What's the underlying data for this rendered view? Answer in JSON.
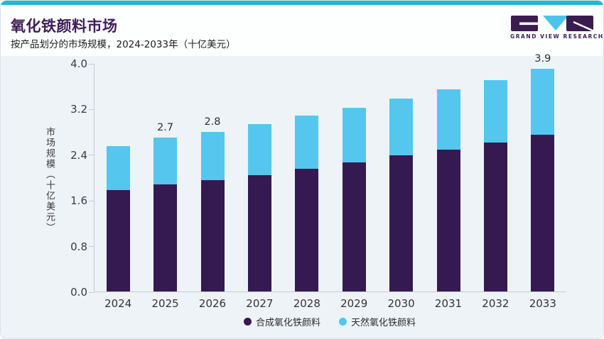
{
  "header": {
    "title": "氧化铁颜料市场",
    "subtitle": "按产品划分的市场规模，2024-2033年（十亿美元）",
    "logo_text": "GRAND VIEW RESEARCH"
  },
  "colors": {
    "accent_bar": "#28b4d8",
    "title_purple": "#3e1e58",
    "synthetic_purple": "#351a52",
    "natural_blue": "#55c6ee",
    "chart_background": "#eef3f8",
    "axis_line": "#c2cad3",
    "logo_purple": "#3a1c4e",
    "logo_cyan": "#4ec3ea"
  },
  "chart_data": {
    "type": "bar",
    "stacked": true,
    "title": "氧化铁颜料市场",
    "subtitle": "按产品划分的市场规模，2024-2033年（十亿美元）",
    "categories": [
      "2024",
      "2025",
      "2026",
      "2027",
      "2028",
      "2029",
      "2030",
      "2031",
      "2032",
      "2033"
    ],
    "series": [
      {
        "name": "合成氧化铁颜料",
        "color": "#351a52",
        "values": [
          1.78,
          1.87,
          1.95,
          2.04,
          2.15,
          2.26,
          2.38,
          2.49,
          2.61,
          2.75
        ]
      },
      {
        "name": "天然氧化铁颜料",
        "color": "#55c6ee",
        "values": [
          0.77,
          0.83,
          0.85,
          0.89,
          0.93,
          0.96,
          1.0,
          1.05,
          1.09,
          1.15
        ]
      }
    ],
    "totals": [
      2.55,
      2.7,
      2.8,
      2.93,
      3.08,
      3.22,
      3.38,
      3.54,
      3.7,
      3.9
    ],
    "total_labels": {
      "2025": "2.7",
      "2026": "2.8",
      "2033": "3.9"
    },
    "xlabel": "",
    "ylabel": "市场规模（十亿美元）",
    "ylim": [
      0,
      4.0
    ],
    "ytick_labels": [
      "0.0",
      "0.8",
      "1.6",
      "2.4",
      "3.2",
      "4.0"
    ],
    "grid": false,
    "legend_position": "bottom"
  }
}
